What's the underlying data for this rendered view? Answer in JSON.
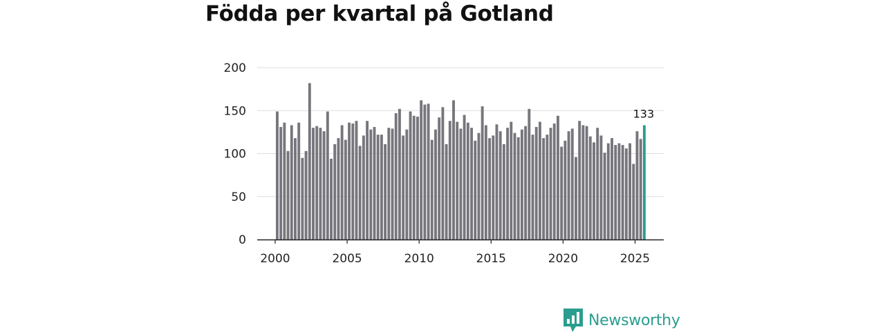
{
  "title": "Födda per kvartal på Gotland",
  "logo": {
    "text": "Newsworthy"
  },
  "colors": {
    "bar": "#77767c",
    "highlight": "#2a9d8f",
    "grid": "#dddddd",
    "axis": "#222222"
  },
  "chart_data": {
    "type": "bar",
    "title": "Födda per kvartal på Gotland",
    "xlabel": "",
    "ylabel": "",
    "ylim": [
      0,
      200
    ],
    "yticks": [
      "0",
      "50",
      "100",
      "150",
      "200"
    ],
    "xticks": [
      "2000",
      "2005",
      "2010",
      "2015",
      "2020",
      "2025"
    ],
    "start_year": 2000,
    "highlight_label": "133",
    "values": [
      149,
      131,
      136,
      103,
      133,
      118,
      136,
      95,
      103,
      182,
      130,
      132,
      130,
      126,
      149,
      94,
      111,
      118,
      133,
      116,
      136,
      135,
      138,
      109,
      121,
      138,
      128,
      131,
      122,
      122,
      111,
      130,
      129,
      147,
      152,
      121,
      128,
      149,
      144,
      143,
      162,
      157,
      158,
      116,
      128,
      142,
      154,
      111,
      138,
      162,
      137,
      129,
      145,
      136,
      130,
      115,
      124,
      155,
      133,
      118,
      121,
      134,
      126,
      111,
      130,
      137,
      124,
      119,
      128,
      132,
      152,
      122,
      131,
      137,
      118,
      122,
      130,
      135,
      144,
      108,
      115,
      126,
      129,
      96,
      138,
      133,
      132,
      120,
      113,
      130,
      121,
      101,
      112,
      118,
      110,
      112,
      110,
      106,
      112,
      88,
      126,
      117,
      133
    ]
  }
}
